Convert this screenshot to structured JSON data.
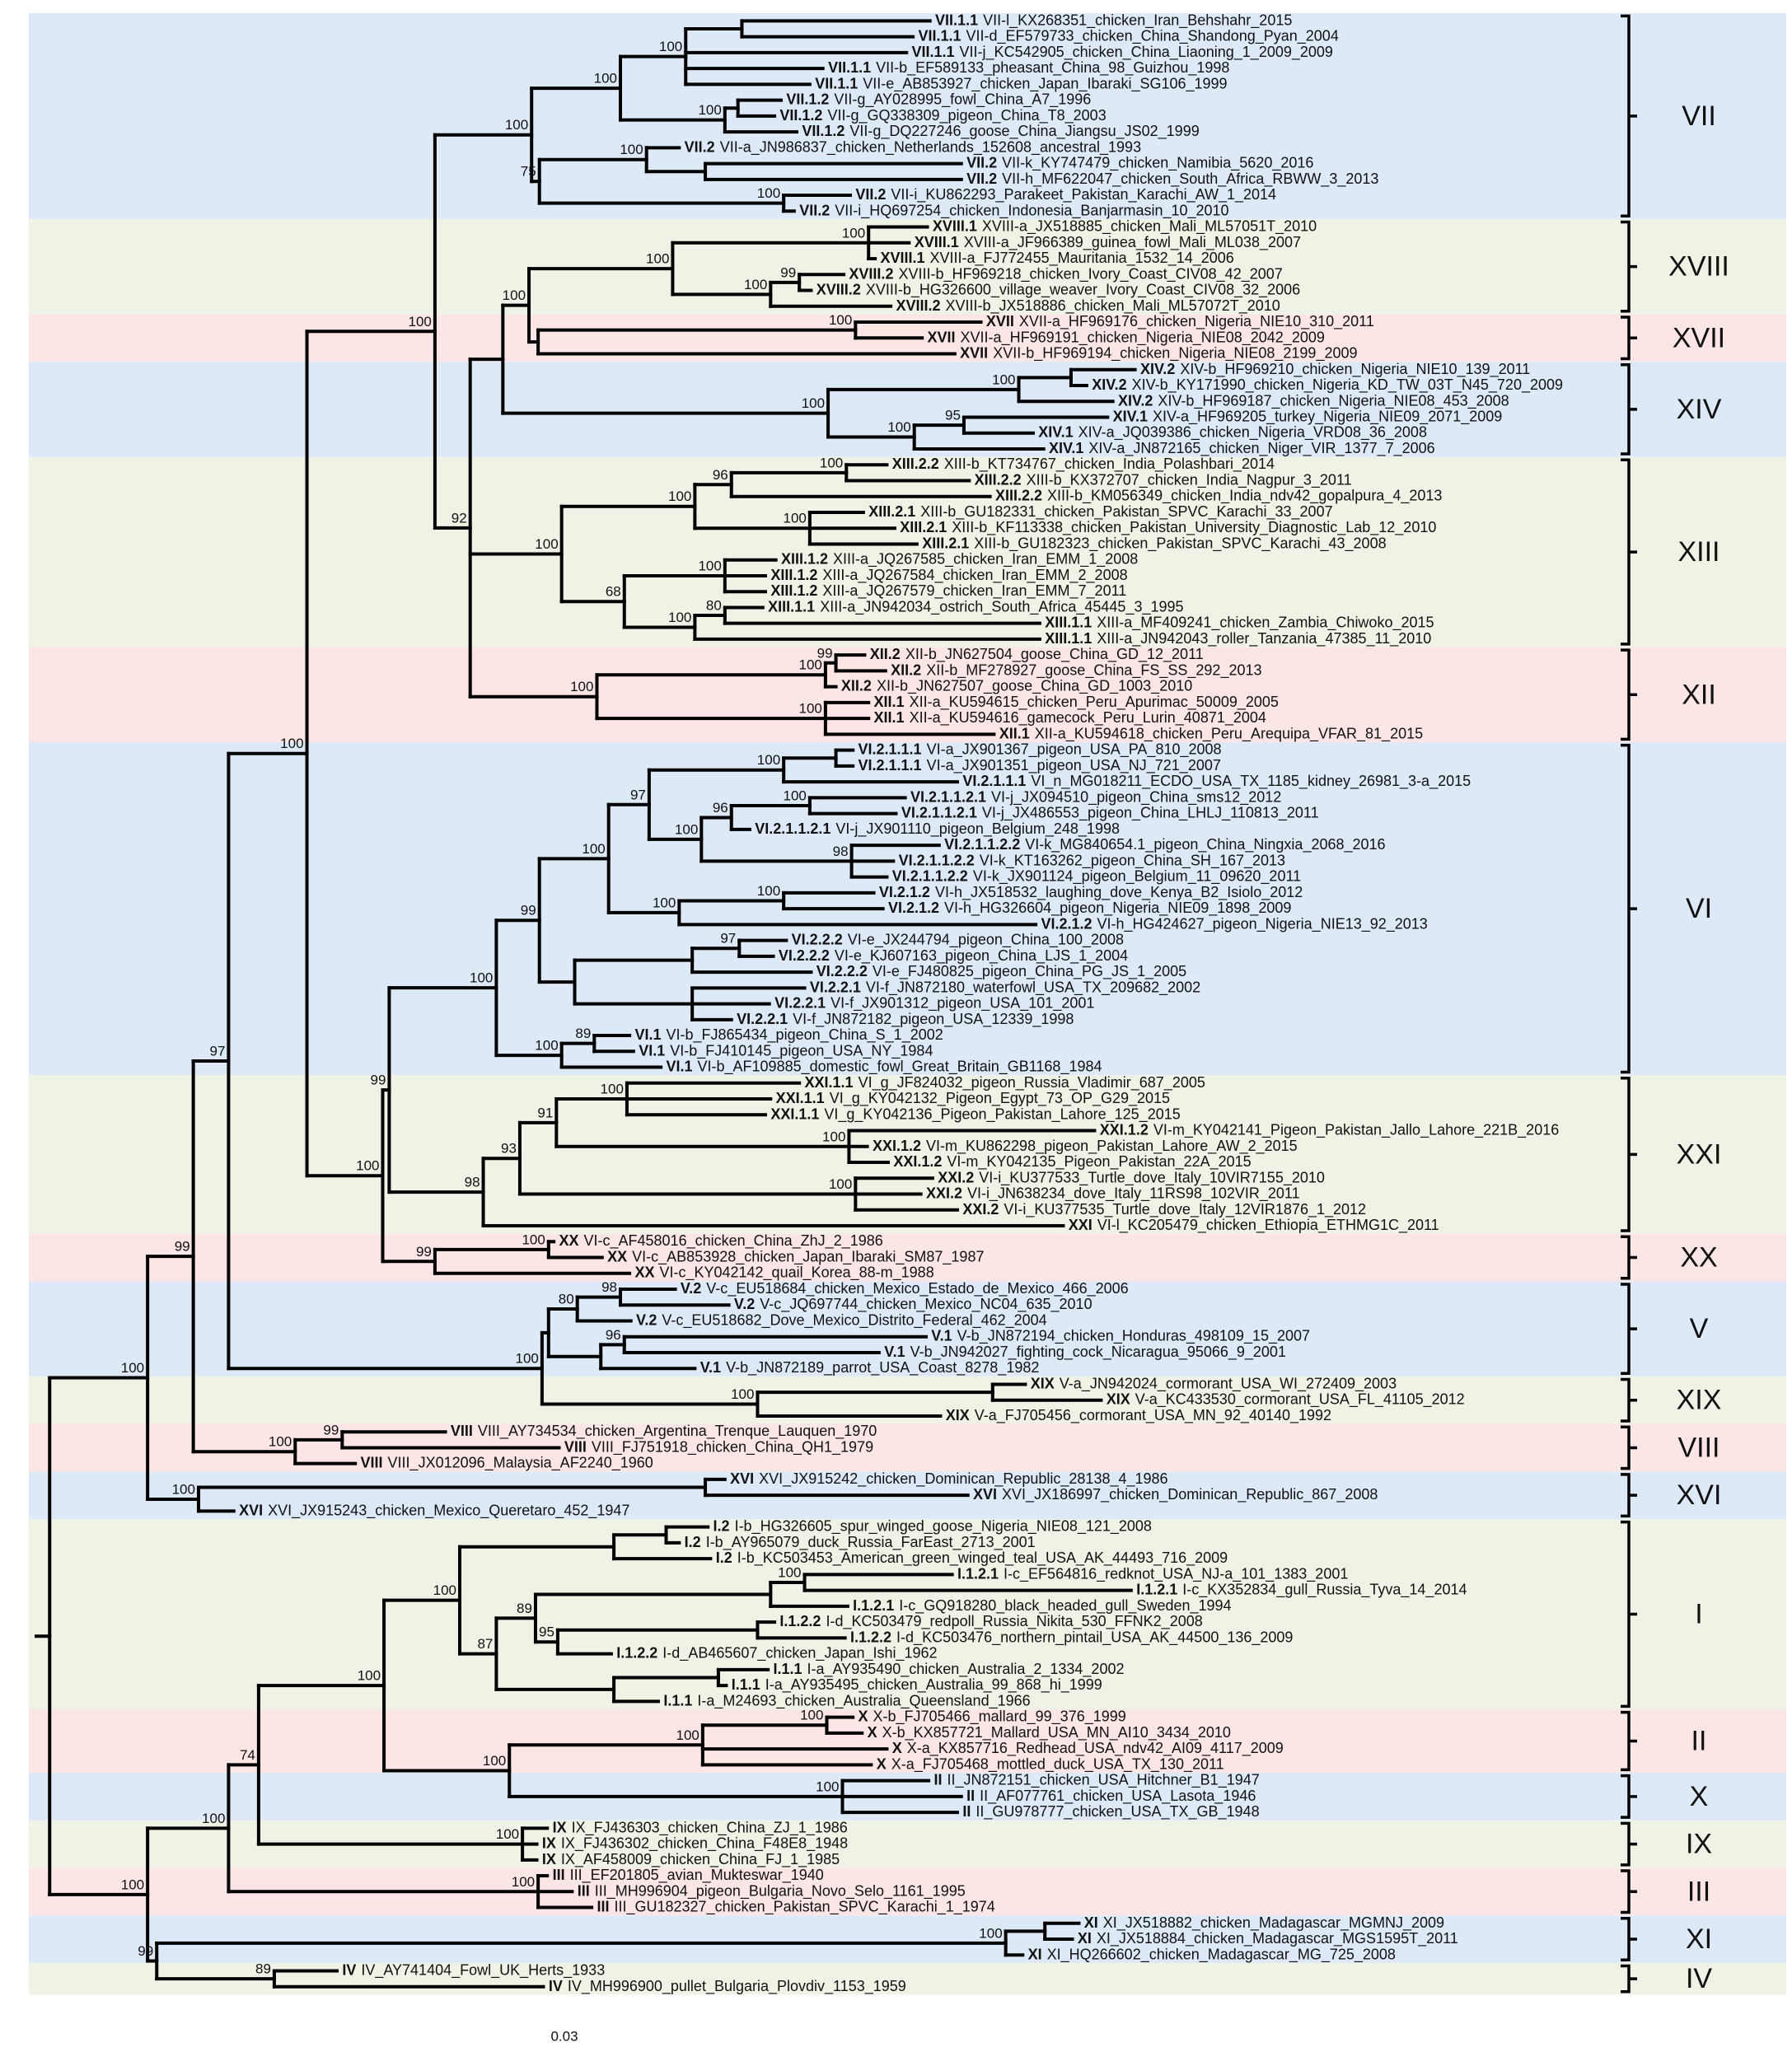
{
  "leaves": [
    {
      "clade": "VII.1.1",
      "name": "VII-l_KX268351_chicken_Iran_Behshahr_2015"
    },
    {
      "clade": "VII.1.1",
      "name": "VII-d_EF579733_chicken_China_Shandong_Pyan_2004"
    },
    {
      "clade": "VII.1.1",
      "name": "VII-j_KC542905_chicken_China_Liaoning_1_2009_2009"
    },
    {
      "clade": "VII.1.1",
      "name": "VII-b_EF589133_pheasant_China_98_Guizhou_1998"
    },
    {
      "clade": "VII.1.1",
      "name": "VII-e_AB853927_chicken_Japan_Ibaraki_SG106_1999"
    },
    {
      "clade": "VII.1.2",
      "name": "VII-g_AY028995_fowl_China_A7_1996"
    },
    {
      "clade": "VII.1.2",
      "name": "VII-g_GQ338309_pigeon_China_T8_2003"
    },
    {
      "clade": "VII.1.2",
      "name": "VII-g_DQ227246_goose_China_Jiangsu_JS02_1999"
    },
    {
      "clade": "VII.2",
      "name": "VII-a_JN986837_chicken_Netherlands_152608_ancestral_1993"
    },
    {
      "clade": "VII.2",
      "name": "VII-k_KY747479_chicken_Namibia_5620_2016"
    },
    {
      "clade": "VII.2",
      "name": "VII-h_MF622047_chicken_South_Africa_RBWW_3_2013"
    },
    {
      "clade": "VII.2",
      "name": "VII-i_KU862293_Parakeet_Pakistan_Karachi_AW_1_2014"
    },
    {
      "clade": "VII.2",
      "name": "VII-i_HQ697254_chicken_Indonesia_Banjarmasin_10_2010"
    },
    {
      "clade": "XVIII.1",
      "name": "XVIII-a_JX518885_chicken_Mali_ML57051T_2010"
    },
    {
      "clade": "XVIII.1",
      "name": "XVIII-a_JF966389_guinea_fowl_Mali_ML038_2007"
    },
    {
      "clade": "XVIII.1",
      "name": "XVIII-a_FJ772455_Mauritania_1532_14_2006"
    },
    {
      "clade": "XVIII.2",
      "name": "XVIII-b_HF969218_chicken_Ivory_Coast_CIV08_42_2007"
    },
    {
      "clade": "XVIII.2",
      "name": "XVIII-b_HG326600_village_weaver_Ivory_Coast_CIV08_32_2006"
    },
    {
      "clade": "XVIII.2",
      "name": "XVIII-b_JX518886_chicken_Mali_ML57072T_2010"
    },
    {
      "clade": "XVII",
      "name": "XVII-a_HF969176_chicken_Nigeria_NIE10_310_2011"
    },
    {
      "clade": "XVII",
      "name": "XVII-a_HF969191_chicken_Nigeria_NIE08_2042_2009"
    },
    {
      "clade": "XVII",
      "name": "XVII-b_HF969194_chicken_Nigeria_NIE08_2199_2009"
    },
    {
      "clade": "XIV.2",
      "name": "XIV-b_HF969210_chicken_Nigeria_NIE10_139_2011"
    },
    {
      "clade": "XIV.2",
      "name": "XIV-b_KY171990_chicken_Nigeria_KD_TW_03T_N45_720_2009"
    },
    {
      "clade": "XIV.2",
      "name": "XIV-b_HF969187_chicken_Nigeria_NIE08_453_2008"
    },
    {
      "clade": "XIV.1",
      "name": "XIV-a_HF969205_turkey_Nigeria_NIE09_2071_2009"
    },
    {
      "clade": "XIV.1",
      "name": "XIV-a_JQ039386_chicken_Nigeria_VRD08_36_2008"
    },
    {
      "clade": "XIV.1",
      "name": "XIV-a_JN872165_chicken_Niger_VIR_1377_7_2006"
    },
    {
      "clade": "XIII.2.2",
      "name": "XIII-b_KT734767_chicken_India_Polashbari_2014"
    },
    {
      "clade": "XIII.2.2",
      "name": "XIII-b_KX372707_chicken_India_Nagpur_3_2011"
    },
    {
      "clade": "XIII.2.2",
      "name": "XIII-b_KM056349_chicken_India_ndv42_gopalpura_4_2013"
    },
    {
      "clade": "XIII.2.1",
      "name": "XIII-b_GU182331_chicken_Pakistan_SPVC_Karachi_33_2007"
    },
    {
      "clade": "XIII.2.1",
      "name": "XIII-b_KF113338_chicken_Pakistan_University_Diagnostic_Lab_12_2010"
    },
    {
      "clade": "XIII.2.1",
      "name": "XIII-b_GU182323_chicken_Pakistan_SPVC_Karachi_43_2008"
    },
    {
      "clade": "XIII.1.2",
      "name": "XIII-a_JQ267585_chicken_Iran_EMM_1_2008"
    },
    {
      "clade": "XIII.1.2",
      "name": "XIII-a_JQ267584_chicken_Iran_EMM_2_2008"
    },
    {
      "clade": "XIII.1.2",
      "name": "XIII-a_JQ267579_chicken_Iran_EMM_7_2011"
    },
    {
      "clade": "XIII.1.1",
      "name": "XIII-a_JN942034_ostrich_South_Africa_45445_3_1995"
    },
    {
      "clade": "XIII.1.1",
      "name": "XIII-a_MF409241_chicken_Zambia_Chiwoko_2015"
    },
    {
      "clade": "XIII.1.1",
      "name": "XIII-a_JN942043_roller_Tanzania_47385_11_2010"
    },
    {
      "clade": "XII.2",
      "name": "XII-b_JN627504_goose_China_GD_12_2011"
    },
    {
      "clade": "XII.2",
      "name": "XII-b_MF278927_goose_China_FS_SS_292_2013"
    },
    {
      "clade": "XII.2",
      "name": "XII-b_JN627507_goose_China_GD_1003_2010"
    },
    {
      "clade": "XII.1",
      "name": "XII-a_KU594615_chicken_Peru_Apurimac_50009_2005"
    },
    {
      "clade": "XII.1",
      "name": "XII-a_KU594616_gamecock_Peru_Lurin_40871_2004"
    },
    {
      "clade": "XII.1",
      "name": "XII-a_KU594618_chicken_Peru_Arequipa_VFAR_81_2015"
    },
    {
      "clade": "VI.2.1.1.1",
      "name": "VI-a_JX901367_pigeon_USA_PA_810_2008"
    },
    {
      "clade": "VI.2.1.1.1",
      "name": "VI-a_JX901351_pigeon_USA_NJ_721_2007"
    },
    {
      "clade": "VI.2.1.1.1",
      "name": "VI_n_MG018211_ECDO_USA_TX_1185_kidney_26981_3-a_2015"
    },
    {
      "clade": "VI.2.1.1.2.1",
      "name": "VI-j_JX094510_pigeon_China_sms12_2012"
    },
    {
      "clade": "VI.2.1.1.2.1",
      "name": "VI-j_JX486553_pigeon_China_LHLJ_110813_2011"
    },
    {
      "clade": "VI.2.1.1.2.1",
      "name": "VI-j_JX901110_pigeon_Belgium_248_1998"
    },
    {
      "clade": "VI.2.1.1.2.2",
      "name": "VI-k_MG840654.1_pigeon_China_Ningxia_2068_2016"
    },
    {
      "clade": "VI.2.1.1.2.2",
      "name": "VI-k_KT163262_pigeon_China_SH_167_2013"
    },
    {
      "clade": "VI.2.1.1.2.2",
      "name": "VI-k_JX901124_pigeon_Belgium_11_09620_2011"
    },
    {
      "clade": "VI.2.1.2",
      "name": "VI-h_JX518532_laughing_dove_Kenya_B2_Isiolo_2012"
    },
    {
      "clade": "VI.2.1.2",
      "name": "VI-h_HG326604_pigeon_Nigeria_NIE09_1898_2009"
    },
    {
      "clade": "VI.2.1.2",
      "name": "VI-h_HG424627_pigeon_Nigeria_NIE13_92_2013"
    },
    {
      "clade": "VI.2.2.2",
      "name": "VI-e_JX244794_pigeon_China_100_2008"
    },
    {
      "clade": "VI.2.2.2",
      "name": "VI-e_KJ607163_pigeon_China_LJS_1_2004"
    },
    {
      "clade": "VI.2.2.2",
      "name": "VI-e_FJ480825_pigeon_China_PG_JS_1_2005"
    },
    {
      "clade": "VI.2.2.1",
      "name": "VI-f_JN872180_waterfowl_USA_TX_209682_2002"
    },
    {
      "clade": "VI.2.2.1",
      "name": "VI-f_JX901312_pigeon_USA_101_2001"
    },
    {
      "clade": "VI.2.2.1",
      "name": "VI-f_JN872182_pigeon_USA_12339_1998"
    },
    {
      "clade": "VI.1",
      "name": "VI-b_FJ865434_pigeon_China_S_1_2002"
    },
    {
      "clade": "VI.1",
      "name": "VI-b_FJ410145_pigeon_USA_NY_1984"
    },
    {
      "clade": "VI.1",
      "name": "VI-b_AF109885_domestic_fowl_Great_Britain_GB1168_1984"
    },
    {
      "clade": "XXI.1.1",
      "name": "VI_g_JF824032_pigeon_Russia_Vladimir_687_2005"
    },
    {
      "clade": "XXI.1.1",
      "name": "VI_g_KY042132_Pigeon_Egypt_73_OP_G29_2015"
    },
    {
      "clade": "XXI.1.1",
      "name": "VI_g_KY042136_Pigeon_Pakistan_Lahore_125_2015"
    },
    {
      "clade": "XXI.1.2",
      "name": "VI-m_KY042141_Pigeon_Pakistan_Jallo_Lahore_221B_2016"
    },
    {
      "clade": "XXI.1.2",
      "name": "VI-m_KU862298_pigeon_Pakistan_Lahore_AW_2_2015"
    },
    {
      "clade": "XXI.1.2",
      "name": "VI-m_KY042135_Pigeon_Pakistan_22A_2015"
    },
    {
      "clade": "XXI.2",
      "name": "VI-i_KU377533_Turtle_dove_Italy_10VIR7155_2010"
    },
    {
      "clade": "XXI.2",
      "name": "VI-i_JN638234_dove_Italy_11RS98_102VIR_2011"
    },
    {
      "clade": "XXI.2",
      "name": "VI-i_KU377535_Turtle_dove_Italy_12VIR1876_1_2012"
    },
    {
      "clade": "XXI",
      "name": "VI-l_KC205479_chicken_Ethiopia_ETHMG1C_2011"
    },
    {
      "clade": "XX",
      "name": "VI-c_AF458016_chicken_China_ZhJ_2_1986"
    },
    {
      "clade": "XX",
      "name": "VI-c_AB853928_chicken_Japan_Ibaraki_SM87_1987"
    },
    {
      "clade": "XX",
      "name": "VI-c_KY042142_quail_Korea_88-m_1988"
    },
    {
      "clade": "V.2",
      "name": "V-c_EU518684_chicken_Mexico_Estado_de_Mexico_466_2006"
    },
    {
      "clade": "V.2",
      "name": "V-c_JQ697744_chicken_Mexico_NC04_635_2010"
    },
    {
      "clade": "V.2",
      "name": "V-c_EU518682_Dove_Mexico_Distrito_Federal_462_2004"
    },
    {
      "clade": "V.1",
      "name": "V-b_JN872194_chicken_Honduras_498109_15_2007"
    },
    {
      "clade": "V.1",
      "name": "V-b_JN942027_fighting_cock_Nicaragua_95066_9_2001"
    },
    {
      "clade": "V.1",
      "name": "V-b_JN872189_parrot_USA_Coast_8278_1982"
    },
    {
      "clade": "XIX",
      "name": "V-a_JN942024_cormorant_USA_WI_272409_2003"
    },
    {
      "clade": "XIX",
      "name": "V-a_KC433530_cormorant_USA_FL_41105_2012"
    },
    {
      "clade": "XIX",
      "name": "V-a_FJ705456_cormorant_USA_MN_92_40140_1992"
    },
    {
      "clade": "VIII",
      "name": "VIII_AY734534_chicken_Argentina_Trenque_Lauquen_1970"
    },
    {
      "clade": "VIII",
      "name": "VIII_FJ751918_chicken_China_QH1_1979"
    },
    {
      "clade": "VIII",
      "name": "VIII_JX012096_Malaysia_AF2240_1960"
    },
    {
      "clade": "XVI",
      "name": "XVI_JX915242_chicken_Dominican_Republic_28138_4_1986"
    },
    {
      "clade": "XVI",
      "name": "XVI_JX186997_chicken_Dominican_Republic_867_2008"
    },
    {
      "clade": "XVI",
      "name": "XVI_JX915243_chicken_Mexico_Queretaro_452_1947"
    },
    {
      "clade": "I.2",
      "name": "I-b_HG326605_spur_winged_goose_Nigeria_NIE08_121_2008"
    },
    {
      "clade": "I.2",
      "name": "I-b_AY965079_duck_Russia_FarEast_2713_2001"
    },
    {
      "clade": "I.2",
      "name": "I-b_KC503453_American_green_winged_teal_USA_AK_44493_716_2009"
    },
    {
      "clade": "I.1.2.1",
      "name": "I-c_EF564816_redknot_USA_NJ-a_101_1383_2001"
    },
    {
      "clade": "I.1.2.1",
      "name": "I-c_KX352834_gull_Russia_Tyva_14_2014"
    },
    {
      "clade": "I.1.2.1",
      "name": "I-c_GQ918280_black_headed_gull_Sweden_1994"
    },
    {
      "clade": "I.1.2.2",
      "name": "I-d_KC503479_redpoll_Russia_Nikita_530_FFNK2_2008"
    },
    {
      "clade": "I.1.2.2",
      "name": "I-d_KC503476_northern_pintail_USA_AK_44500_136_2009"
    },
    {
      "clade": "I.1.2.2",
      "name": "I-d_AB465607_chicken_Japan_Ishi_1962"
    },
    {
      "clade": "I.1.1",
      "name": "I-a_AY935490_chicken_Australia_2_1334_2002"
    },
    {
      "clade": "I.1.1",
      "name": "I-a_AY935495_chicken_Australia_99_868_hi_1999"
    },
    {
      "clade": "I.1.1",
      "name": "I-a_M24693_chicken_Australia_Queensland_1966"
    },
    {
      "clade": "X",
      "name": "X-b_FJ705466_mallard_99_376_1999"
    },
    {
      "clade": "X",
      "name": "X-b_KX857721_Mallard_USA_MN_AI10_3434_2010"
    },
    {
      "clade": "X",
      "name": "X-a_KX857716_Redhead_USA_ndv42_AI09_4117_2009"
    },
    {
      "clade": "X",
      "name": "X-a_FJ705468_mottled_duck_USA_TX_130_2011"
    },
    {
      "clade": "II",
      "name": "II_JN872151_chicken_USA_Hitchner_B1_1947"
    },
    {
      "clade": "II",
      "name": "II_AF077761_chicken_USA_Lasota_1946"
    },
    {
      "clade": "II",
      "name": "II_GU978777_chicken_USA_TX_GB_1948"
    },
    {
      "clade": "IX",
      "name": "IX_FJ436303_chicken_China_ZJ_1_1986"
    },
    {
      "clade": "IX",
      "name": "IX_FJ436302_chicken_China_F48E8_1948"
    },
    {
      "clade": "IX",
      "name": "IX_AF458009_chicken_China_FJ_1_1985"
    },
    {
      "clade": "III",
      "name": "III_EF201805_avian_Mukteswar_1940"
    },
    {
      "clade": "III",
      "name": "III_MH996904_pigeon_Bulgaria_Novo_Selo_1161_1995"
    },
    {
      "clade": "III",
      "name": "III_GU182327_chicken_Pakistan_SPVC_Karachi_1_1974"
    },
    {
      "clade": "XI",
      "name": "XI_JX518882_chicken_Madagascar_MGMNJ_2009"
    },
    {
      "clade": "XI",
      "name": "XI_JX518884_chicken_Madagascar_MGS1595T_2011"
    },
    {
      "clade": "XI",
      "name": "XI_HQ266602_chicken_Madagascar_MG_725_2008"
    },
    {
      "clade": "IV",
      "name": "IV_AY741404_Fowl_UK_Herts_1933"
    },
    {
      "clade": "IV",
      "name": "IV_MH996900_pullet_Bulgaria_Plovdiv_1153_1959"
    }
  ],
  "bootstrap": [
    100,
    100,
    100,
    100,
    100,
    75,
    100,
    100,
    99,
    100,
    100,
    100,
    100,
    100,
    100,
    95,
    100,
    96,
    100,
    100,
    100,
    100,
    100,
    80,
    68,
    100,
    100,
    99,
    100,
    100,
    100,
    92,
    97,
    100,
    100,
    96,
    100,
    98,
    100,
    100,
    100,
    97,
    99,
    100,
    89,
    100,
    100,
    100,
    100,
    91,
    93,
    98,
    99,
    99,
    100,
    100,
    100,
    80,
    98,
    96,
    100,
    100,
    97,
    100,
    99,
    99,
    100,
    100,
    100,
    95,
    89,
    87,
    100,
    100,
    100,
    100,
    100,
    100,
    100,
    74,
    100,
    100,
    100,
    89,
    99,
    100
  ],
  "clades": [
    "VII",
    "XVIII",
    "XVII",
    "XIV",
    "XIII",
    "XII",
    "VI",
    "XXI",
    "XX",
    "V",
    "XIX",
    "VIII",
    "XVI",
    "I",
    "II",
    "X",
    "IX",
    "III",
    "XI",
    "IV"
  ],
  "scale_label": "0.03"
}
